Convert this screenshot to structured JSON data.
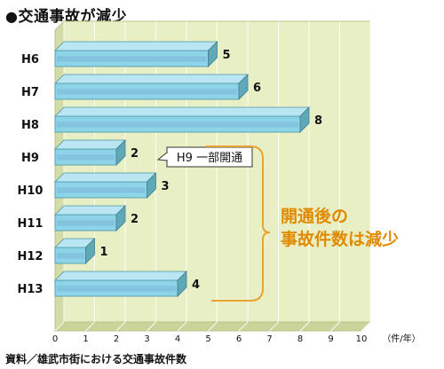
{
  "title": "交通事故が減少",
  "title_bullet": "●",
  "source": "資料／雄武市街における交通事故件数",
  "colors": {
    "background": "#ffffff",
    "plot_back": "#e8efc4",
    "plot_floor": "#c9d39a",
    "bar_front": "#8ed4e8",
    "bar_top": "#b9e6f2",
    "bar_side": "#5fa8b7",
    "callout_line": "#e8a330",
    "summary_text": "#e08a00"
  },
  "chart_data": {
    "type": "bar",
    "orientation": "horizontal",
    "categories": [
      "H6",
      "H7",
      "H8",
      "H9",
      "H10",
      "H11",
      "H12",
      "H13"
    ],
    "values": [
      5,
      6,
      8,
      2,
      3,
      2,
      1,
      4
    ],
    "xlim": [
      0,
      10
    ],
    "xticks": [
      "0",
      "1",
      "2",
      "3",
      "4",
      "5",
      "6",
      "7",
      "8",
      "9",
      "10"
    ],
    "xunit": "（件/年）",
    "grid": true,
    "annotations": {
      "callout": "H9 一部開通",
      "summary_line1": "開通後の",
      "summary_line2": "事故件数は減少"
    }
  }
}
